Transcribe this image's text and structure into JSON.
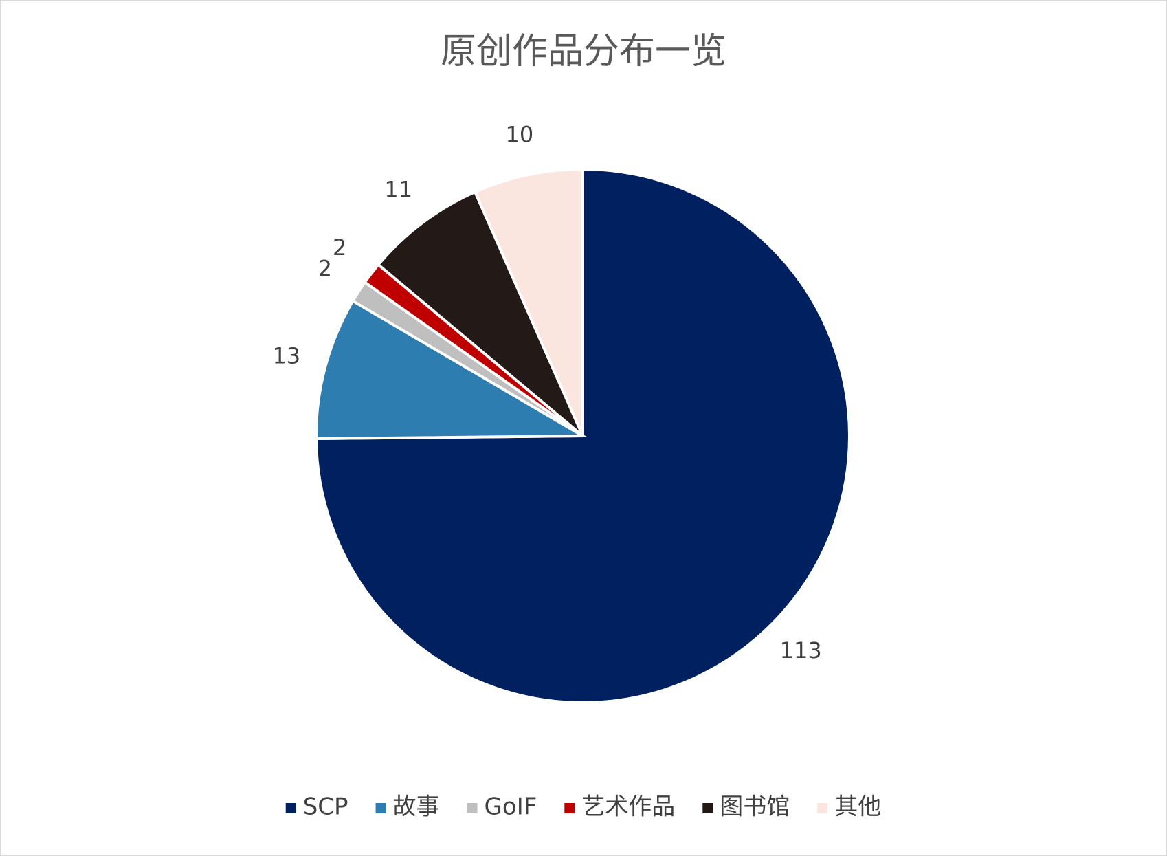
{
  "chart_data": {
    "type": "pie",
    "title": "原创作品分布一览",
    "categories": [
      "SCP",
      "故事",
      "GoIF",
      "艺术作品",
      "图书馆",
      "其他"
    ],
    "values": [
      113,
      13,
      2,
      2,
      11,
      10
    ],
    "colors": [
      "#002060",
      "#2e7db0",
      "#bfbfbf",
      "#c00000",
      "#231a17",
      "#fbe5df"
    ],
    "legend": "bottom"
  }
}
